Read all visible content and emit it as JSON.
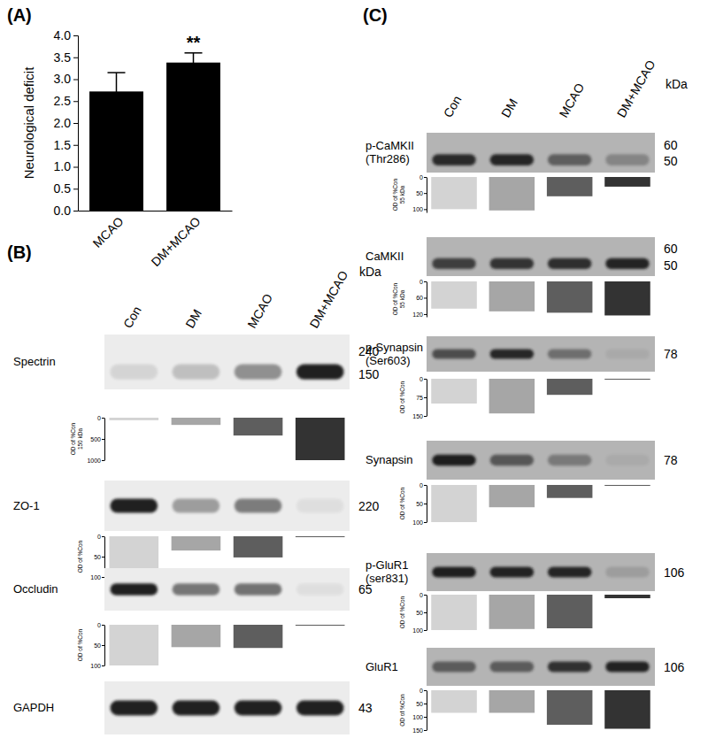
{
  "chart_data": [
    {
      "type": "bar",
      "panel_label": "(A)",
      "categories": [
        "MCAO",
        "DM+MCAO"
      ],
      "values": [
        2.72,
        3.38
      ],
      "errors": [
        0.43,
        0.22
      ],
      "color": "#000000",
      "y_label": "Neurological deficit",
      "ylim": [
        0,
        4
      ],
      "yticks": [
        {
          "value": 0,
          "label": "0.0"
        },
        {
          "value": 0.5,
          "label": "0.5"
        },
        {
          "value": 1,
          "label": "1.0"
        },
        {
          "value": 1.5,
          "label": "1.5"
        },
        {
          "value": 2,
          "label": "2.0"
        },
        {
          "value": 2.5,
          "label": "2.5"
        },
        {
          "value": 3,
          "label": "3.0"
        },
        {
          "value": 3.5,
          "label": "3.5"
        },
        {
          "value": 4,
          "label": "4.0"
        }
      ],
      "annotations": [
        {
          "text": "**",
          "x": "DM+MCAO"
        }
      ]
    },
    {
      "type": "blot",
      "panel_label": "(B)",
      "lanes": [
        "Con",
        "DM",
        "MCAO",
        "DM+MCAO"
      ],
      "colors": [
        "#d3d3d3",
        "#a6a6a6",
        "#5e5e5e",
        "#333333"
      ],
      "mw_unit": "kDa",
      "blots": [
        {
          "protein": [
            "Spectrin"
          ],
          "mw": [
            240,
            150
          ],
          "y_label": [
            "OD of %Con",
            "150 kDa"
          ],
          "ylim": [
            0,
            1000
          ],
          "yticks": [
            0,
            500,
            1000
          ],
          "values": [
            60,
            170,
            420,
            1000
          ]
        },
        {
          "protein": [
            "ZO-1"
          ],
          "mw": [
            220
          ],
          "y_label": [
            "OD of %Con"
          ],
          "ylim": [
            0,
            100
          ],
          "yticks": [
            0,
            50,
            100
          ],
          "values": [
            100,
            35,
            52,
            1
          ]
        },
        {
          "protein": [
            "Occludin"
          ],
          "mw": [
            65
          ],
          "y_label": [
            "OD of %Con"
          ],
          "ylim": [
            0,
            100
          ],
          "yticks": [
            0,
            50,
            100
          ],
          "values": [
            100,
            55,
            57,
            1
          ]
        },
        {
          "protein": [
            "GAPDH"
          ],
          "mw": [
            43
          ]
        }
      ]
    },
    {
      "type": "blot",
      "panel_label": "(C)",
      "lanes": [
        "Con",
        "DM",
        "MCAO",
        "DM+MCAO"
      ],
      "colors": [
        "#d3d3d3",
        "#a6a6a6",
        "#5e5e5e",
        "#333333"
      ],
      "mw_unit": "kDa",
      "blots": [
        {
          "protein": [
            "p-CaMKII",
            "(Thr286)"
          ],
          "mw": [
            60,
            50
          ],
          "y_label": [
            "OD of %Con",
            "55 kDa"
          ],
          "ylim": [
            0,
            110
          ],
          "yticks": [
            0,
            50,
            100
          ],
          "values": [
            100,
            104,
            60,
            30
          ]
        },
        {
          "protein": [
            "CaMKII"
          ],
          "mw": [
            60,
            50
          ],
          "y_label": [
            "OD of %Con",
            "55 kDa"
          ],
          "ylim": [
            0,
            130
          ],
          "yticks": [
            0,
            60,
            120
          ],
          "values": [
            100,
            110,
            115,
            125
          ]
        },
        {
          "protein": [
            "p-Synapsin",
            "(Ser603)"
          ],
          "mw": [
            78
          ],
          "y_label": [
            "OD of %Con"
          ],
          "ylim": [
            0,
            150
          ],
          "yticks": [
            0,
            75,
            150
          ],
          "values": [
            100,
            140,
            65,
            2
          ]
        },
        {
          "protein": [
            "Synapsin"
          ],
          "mw": [
            78
          ],
          "y_label": [
            "OD of %Con"
          ],
          "ylim": [
            0,
            100
          ],
          "yticks": [
            0,
            50,
            100
          ],
          "values": [
            100,
            60,
            35,
            1
          ]
        },
        {
          "protein": [
            "p-GluR1",
            "(ser831)"
          ],
          "mw": [
            106
          ],
          "y_label": [
            "OD of %Con"
          ],
          "ylim": [
            0,
            100
          ],
          "yticks": [
            0,
            50,
            100
          ],
          "values": [
            100,
            97,
            95,
            10
          ]
        },
        {
          "protein": [
            "GluR1"
          ],
          "mw": [
            106
          ],
          "y_label": [
            "OD of %Con"
          ],
          "ylim": [
            0,
            150
          ],
          "yticks": [
            0,
            50,
            100,
            150
          ],
          "values": [
            85,
            85,
            130,
            145
          ]
        }
      ]
    }
  ]
}
